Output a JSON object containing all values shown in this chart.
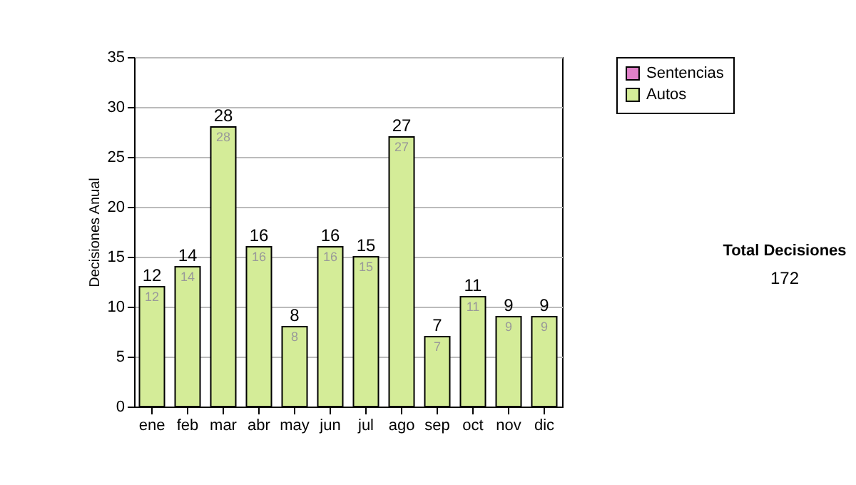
{
  "chart_data": {
    "type": "bar",
    "ylabel": "Decisiones Anual",
    "categories": [
      "ene",
      "feb",
      "mar",
      "abr",
      "may",
      "jun",
      "jul",
      "ago",
      "sep",
      "oct",
      "nov",
      "dic"
    ],
    "stacked": true,
    "series": [
      {
        "name": "Sentencias",
        "color": "#e080c8",
        "values": [
          0,
          0,
          0,
          0,
          0,
          0,
          0,
          0,
          0,
          0,
          0,
          0
        ]
      },
      {
        "name": "Autos",
        "color": "#d4ec98",
        "values": [
          12,
          14,
          28,
          16,
          8,
          16,
          15,
          27,
          7,
          11,
          9,
          9
        ],
        "value_labels": [
          "12",
          "14",
          "28",
          "16",
          "8",
          "16",
          "15",
          "27",
          "7",
          "11",
          "9",
          "9"
        ]
      }
    ],
    "totals": [
      "12",
      "14",
      "28",
      "16",
      "8",
      "16",
      "15",
      "27",
      "7",
      "11",
      "9",
      "9"
    ],
    "ylim": [
      0,
      35
    ],
    "yticks": [
      0,
      5,
      10,
      15,
      20,
      25,
      30,
      35
    ],
    "grid": "y",
    "legend": "right",
    "annotations": [
      "Total Decisiones",
      "172"
    ]
  }
}
